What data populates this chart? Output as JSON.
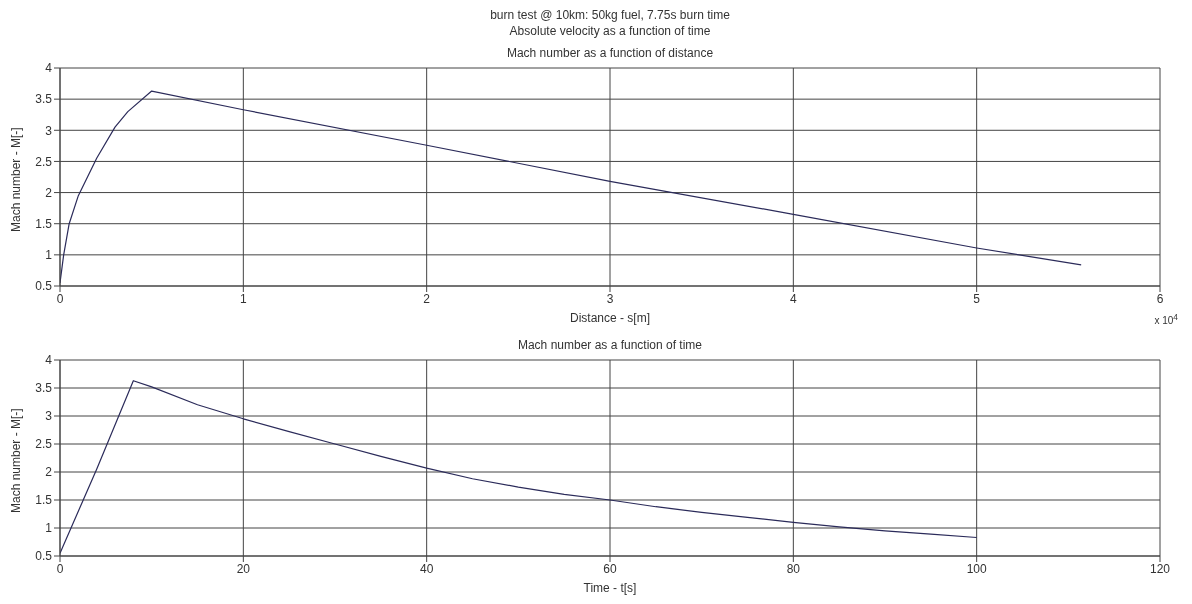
{
  "chart_data": [
    {
      "type": "line",
      "title": "burn test @ 10km: 50kg fuel, 7.75s burn time",
      "subtitle": "Absolute velocity as a function of time",
      "annotations": [
        "Mach number as a function of distance",
        "x 10$^{4}$"
      ],
      "xlabel": "Distance - s[m]",
      "ylabel": "Mach number - M[-]",
      "color": "#2b2b5a",
      "x": [
        0,
        0.02,
        0.05,
        0.1,
        0.2,
        0.3,
        0.37,
        0.5,
        1,
        2,
        3,
        4,
        5,
        5.57
      ],
      "values": [
        0.55,
        1.0,
        1.5,
        1.95,
        2.55,
        3.05,
        3.3,
        3.63,
        3.33,
        2.76,
        2.18,
        1.65,
        1.11,
        0.84
      ],
      "xlim": [
        0,
        6
      ],
      "xticks": [
        0,
        1,
        2,
        3,
        4,
        5,
        6
      ],
      "ylim": [
        0.5,
        4
      ],
      "yticks": [
        0.5,
        1,
        1.5,
        2,
        2.5,
        3,
        3.5,
        4
      ],
      "grid": true
    },
    {
      "type": "line",
      "title": "Mach number as a function of time",
      "xlabel": "Time - t[s]",
      "ylabel": "Mach number - M[-]",
      "color": "#2b2b5a",
      "x": [
        0,
        4,
        8,
        10,
        15,
        20,
        25,
        30,
        35,
        40,
        45,
        50,
        55,
        60,
        65,
        70,
        75,
        80,
        85,
        90,
        95,
        100
      ],
      "values": [
        0.55,
        2.05,
        3.63,
        3.52,
        3.2,
        2.95,
        2.72,
        2.5,
        2.28,
        2.07,
        1.88,
        1.73,
        1.6,
        1.5,
        1.38,
        1.28,
        1.19,
        1.1,
        1.02,
        0.95,
        0.89,
        0.83
      ],
      "xlim": [
        0,
        120
      ],
      "xticks": [
        0,
        20,
        40,
        60,
        80,
        100,
        120
      ],
      "ylim": [
        0.5,
        4
      ],
      "yticks": [
        0.5,
        1,
        1.5,
        2,
        2.5,
        3,
        3.5,
        4
      ],
      "grid": true
    }
  ]
}
